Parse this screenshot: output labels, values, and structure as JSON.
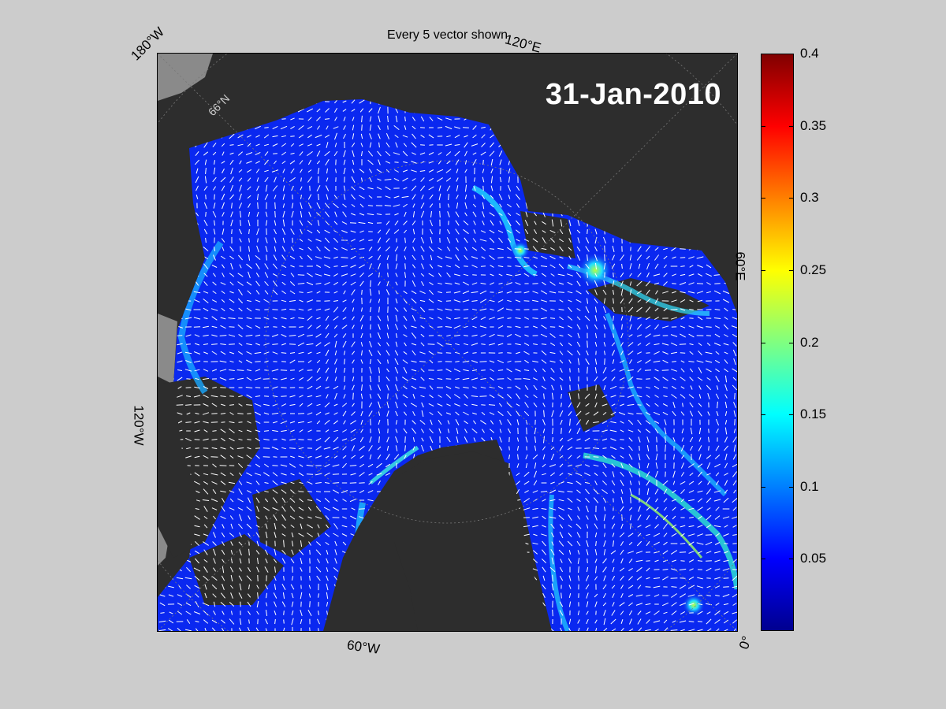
{
  "title": "Every 5 vector shown",
  "date_label": "31-Jan-2010",
  "geo_labels": {
    "lon_180w": "180°W",
    "lon_120e": "120°E",
    "lat_66n": "66°N",
    "lon_60e": "60°E",
    "lon_120w": "120°W",
    "lon_60w": "60°W",
    "lon_0": "0°"
  },
  "colorbar": {
    "min": 0,
    "max": 0.4,
    "ticks": [
      "0.4",
      "0.35",
      "0.3",
      "0.25",
      "0.2",
      "0.15",
      "0.1",
      "0.05"
    ],
    "tick_values": [
      0.4,
      0.35,
      0.3,
      0.25,
      0.2,
      0.15,
      0.1,
      0.05
    ],
    "colormap": "jet"
  },
  "colors": {
    "land": "#2d2d2d",
    "coast_fill": "#8a8a8a",
    "ocean": "#0a28f0",
    "vector": "#ffffff",
    "background": "#cccccc"
  }
}
